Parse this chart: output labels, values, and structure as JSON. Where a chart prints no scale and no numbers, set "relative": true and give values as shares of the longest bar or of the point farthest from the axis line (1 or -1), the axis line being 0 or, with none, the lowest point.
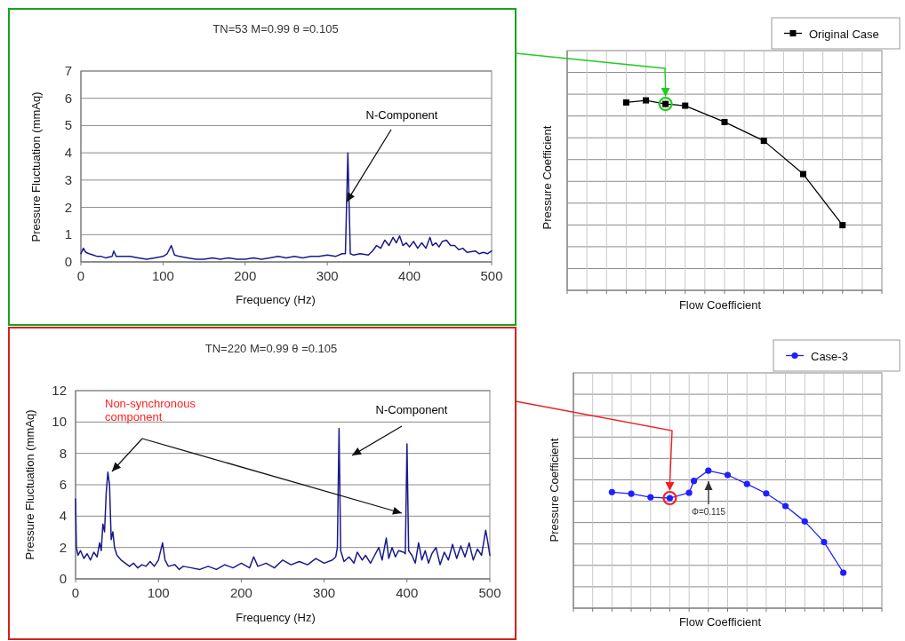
{
  "chart_data": [
    {
      "type": "line",
      "title": "TN=53 M=0.99 θ =0.105",
      "xlabel": "Frequency (Hz)",
      "ylabel": "Pressure Fluctuation (mmAq)",
      "xlim": [
        0,
        500
      ],
      "xticks": [
        0,
        100,
        200,
        300,
        400,
        500
      ],
      "ylim": [
        0,
        7
      ],
      "yticks": [
        0,
        1,
        2,
        3,
        4,
        5,
        6,
        7
      ],
      "grid": "y",
      "legend": false,
      "annotations": [
        {
          "text": "N-Component",
          "x": 323.5,
          "y": 2.2
        }
      ],
      "series": [
        {
          "color": "#1a1a8c",
          "x": [
            0,
            3,
            6,
            10,
            15,
            20,
            25,
            30,
            38,
            40,
            43,
            50,
            60,
            70,
            80,
            90,
            100,
            105,
            110,
            114,
            120,
            130,
            140,
            150,
            160,
            170,
            180,
            190,
            200,
            210,
            220,
            230,
            240,
            250,
            260,
            270,
            280,
            290,
            300,
            310,
            318,
            322,
            325,
            328,
            332,
            340,
            350,
            355,
            360,
            365,
            370,
            375,
            380,
            384,
            388,
            392,
            396,
            400,
            405,
            410,
            415,
            420,
            425,
            428,
            432,
            436,
            440,
            445,
            450,
            455,
            460,
            465,
            470,
            480,
            485,
            490,
            495,
            500
          ],
          "values": [
            0.3,
            0.5,
            0.35,
            0.3,
            0.25,
            0.2,
            0.2,
            0.15,
            0.2,
            0.4,
            0.2,
            0.2,
            0.2,
            0.15,
            0.1,
            0.15,
            0.2,
            0.3,
            0.6,
            0.25,
            0.2,
            0.15,
            0.1,
            0.1,
            0.15,
            0.1,
            0.15,
            0.1,
            0.1,
            0.15,
            0.1,
            0.15,
            0.2,
            0.15,
            0.2,
            0.15,
            0.2,
            0.2,
            0.25,
            0.2,
            0.3,
            0.3,
            4.0,
            0.3,
            0.25,
            0.3,
            0.25,
            0.4,
            0.6,
            0.5,
            0.8,
            0.6,
            0.9,
            0.7,
            0.95,
            0.6,
            0.7,
            0.55,
            0.75,
            0.5,
            0.7,
            0.5,
            0.9,
            0.6,
            0.7,
            0.55,
            0.75,
            0.8,
            0.6,
            0.6,
            0.45,
            0.5,
            0.35,
            0.4,
            0.3,
            0.35,
            0.3,
            0.4
          ]
        }
      ]
    },
    {
      "type": "line",
      "relative": true,
      "xlabel": "Flow Coefficient",
      "ylabel": "Pressure Coefficient",
      "categories": [
        null,
        null,
        null,
        null,
        null,
        null,
        null,
        null,
        null,
        null,
        null,
        null,
        null,
        null,
        null,
        null,
        null
      ],
      "grid": true,
      "legend": "top right",
      "marker": "square",
      "series": [
        {
          "name": "Original Case",
          "color": "#000000",
          "values": [
            null,
            null,
            null,
            0.989,
            1,
            0.981,
            0.972,
            null,
            0.886,
            null,
            0.787,
            null,
            0.612,
            null,
            0.343,
            null,
            null
          ]
        }
      ]
    },
    {
      "type": "line",
      "title": "TN=220 M=0.99 θ =0.105",
      "xlabel": "Frequency (Hz)",
      "ylabel": "Pressure Fluctuation (mmAq)",
      "xlim": [
        0,
        500
      ],
      "xticks": [
        0,
        100,
        200,
        300,
        400,
        500
      ],
      "ylim": [
        0,
        12
      ],
      "yticks": [
        0,
        2,
        4,
        6,
        8,
        10,
        12
      ],
      "grid": "y",
      "legend": false,
      "annotations": [
        "Non-synchronous component",
        "N-Component"
      ],
      "series": [
        {
          "color": "#1a1a8c",
          "x": [
            0,
            1,
            3,
            6,
            10,
            14,
            18,
            22,
            26,
            29,
            31,
            33,
            35,
            37,
            39,
            41,
            43,
            45,
            47,
            50,
            55,
            60,
            65,
            70,
            75,
            80,
            85,
            90,
            95,
            100,
            105,
            108,
            112,
            120,
            125,
            130,
            140,
            150,
            160,
            170,
            180,
            190,
            200,
            210,
            215,
            220,
            230,
            240,
            250,
            260,
            270,
            280,
            290,
            300,
            310,
            314,
            316,
            318,
            320,
            324,
            330,
            336,
            340,
            346,
            350,
            356,
            360,
            366,
            370,
            375,
            378,
            382,
            386,
            390,
            396,
            398,
            400,
            402,
            406,
            410,
            414,
            418,
            422,
            426,
            430,
            435,
            440,
            445,
            450,
            455,
            460,
            465,
            470,
            475,
            480,
            485,
            490,
            495,
            498,
            500
          ],
          "values": [
            5.1,
            2.0,
            1.5,
            1.8,
            1.3,
            1.6,
            1.2,
            1.7,
            1.4,
            2.3,
            1.8,
            3.5,
            3.0,
            5.5,
            6.8,
            6.0,
            2.5,
            3.0,
            2.0,
            1.5,
            1.2,
            1.0,
            0.8,
            1.0,
            0.7,
            0.9,
            0.8,
            1.1,
            0.8,
            1.2,
            2.3,
            1.2,
            0.8,
            0.9,
            0.6,
            0.8,
            0.7,
            0.6,
            0.8,
            0.6,
            0.9,
            0.7,
            1.0,
            0.7,
            1.4,
            0.8,
            1.0,
            0.7,
            1.2,
            0.9,
            1.1,
            0.9,
            1.3,
            1.0,
            1.2,
            1.4,
            2.0,
            9.6,
            1.8,
            1.1,
            1.4,
            1.0,
            1.7,
            1.2,
            1.5,
            1.0,
            1.4,
            2.0,
            1.2,
            2.6,
            1.3,
            2.0,
            1.4,
            1.8,
            1.7,
            1.6,
            8.6,
            1.8,
            1.5,
            1.0,
            2.3,
            1.2,
            1.8,
            1.0,
            1.6,
            2.0,
            0.9,
            1.7,
            1.2,
            2.2,
            1.3,
            2.1,
            1.4,
            2.3,
            1.2,
            1.9,
            1.5,
            3.1,
            2.2,
            1.5
          ]
        }
      ]
    },
    {
      "type": "line",
      "relative": true,
      "xlabel": "Flow Coefficient",
      "ylabel": "Pressure Coefficient",
      "categories": [
        null,
        null,
        null,
        null,
        null,
        null,
        null,
        null,
        null,
        null,
        null,
        null,
        null,
        null,
        null,
        null,
        null,
        null,
        null,
        null,
        null,
        null,
        null,
        null,
        null,
        null,
        null,
        null,
        null,
        null,
        null,
        null,
        null,
        null,
        null,
        null,
        null,
        null,
        null,
        null,
        null,
        null,
        null,
        null,
        null,
        null,
        null,
        null,
        null,
        null,
        null,
        null,
        null,
        null,
        null,
        null,
        null,
        null,
        null,
        null,
        null,
        null,
        null,
        null,
        null
      ],
      "grid": true,
      "legend": "top right",
      "marker": "circle",
      "annotations": [
        "Φ=0.115"
      ],
      "series": [
        {
          "name": "Case-3",
          "color": "#1f1fff",
          "values": [
            null,
            null,
            null,
            null,
            null,
            null,
            null,
            null,
            0.843,
            null,
            null,
            null,
            0.832,
            null,
            null,
            null,
            0.806,
            null,
            null,
            null,
            0.8,
            null,
            null,
            null,
            0.839,
            0.925,
            null,
            null,
            1,
            null,
            null,
            null,
            0.968,
            null,
            null,
            null,
            0.903,
            null,
            null,
            null,
            0.834,
            null,
            null,
            null,
            0.742,
            null,
            null,
            null,
            0.63,
            null,
            null,
            null,
            0.48,
            null,
            null,
            null,
            0.258,
            null,
            null,
            null,
            null,
            null,
            null,
            null,
            null
          ]
        }
      ]
    }
  ]
}
